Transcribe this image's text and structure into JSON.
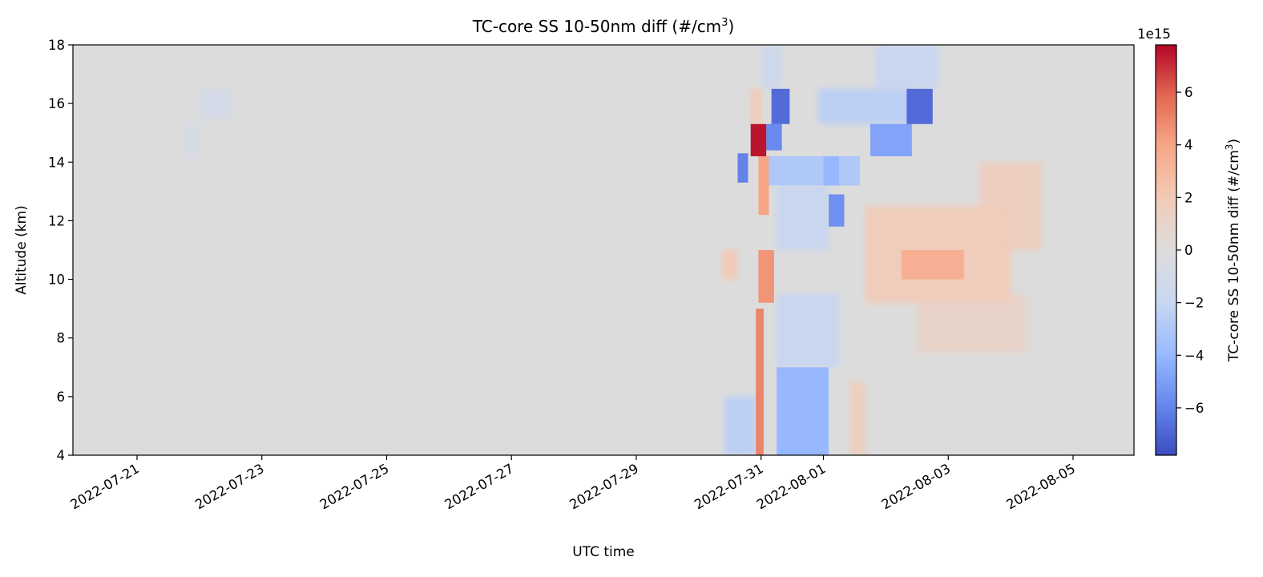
{
  "chart_data": {
    "type": "heatmap",
    "title": "TC-core SS 10-50nm diff (#/cm",
    "title_superscript": "3",
    "title_suffix": ")",
    "xlabel": "UTC time",
    "ylabel": "Altitude (km)",
    "x_ticks": [
      "2022-07-21",
      "2022-07-23",
      "2022-07-25",
      "2022-07-27",
      "2022-07-29",
      "2022-07-31",
      "2022-08-01",
      "2022-08-03",
      "2022-08-05"
    ],
    "x_range": [
      "2022-07-20",
      "2022-08-06"
    ],
    "y_ticks": [
      4,
      6,
      8,
      10,
      12,
      14,
      16,
      18
    ],
    "ylim": [
      4,
      18
    ],
    "colorbar": {
      "label": "TC-core SS 10-50nm diff (#/cm",
      "label_superscript": "3",
      "label_suffix": ")",
      "exponent_label": "1e15",
      "ticks": [
        -6,
        -4,
        -2,
        0,
        2,
        4,
        6
      ],
      "tick_labels": [
        "−6",
        "−4",
        "−2",
        "0",
        "2",
        "4",
        "6"
      ],
      "range": [
        -7.8,
        7.8
      ],
      "colormap": "coolwarm",
      "colors": [
        "#3b4cc0",
        "#6788ee",
        "#9abbff",
        "#c9d7f0",
        "#dddcdc",
        "#f2cbb7",
        "#f7a889",
        "#e26952",
        "#b40426"
      ]
    },
    "features": [
      {
        "t0": "2022-07-30 20:00",
        "t1": "2022-07-31 02:00",
        "alt0": 14.2,
        "alt1": 15.3,
        "value": 7.5
      },
      {
        "t0": "2022-07-31 04:00",
        "t1": "2022-07-31 11:00",
        "alt0": 15.3,
        "alt1": 16.5,
        "value": -6.8
      },
      {
        "t0": "2022-07-31 02:00",
        "t1": "2022-07-31 08:00",
        "alt0": 14.4,
        "alt1": 15.3,
        "value": -5.8
      },
      {
        "t0": "2022-08-02 08:00",
        "t1": "2022-08-02 18:00",
        "alt0": 15.3,
        "alt1": 16.5,
        "value": -6.8
      },
      {
        "t0": "2022-08-01 18:00",
        "t1": "2022-08-02 10:00",
        "alt0": 14.2,
        "alt1": 15.3,
        "value": -4.8
      },
      {
        "t0": "2022-07-30 15:00",
        "t1": "2022-07-30 19:00",
        "alt0": 13.3,
        "alt1": 14.3,
        "value": -6.0
      },
      {
        "t0": "2022-08-01 02:00",
        "t1": "2022-08-01 08:00",
        "alt0": 11.8,
        "alt1": 12.9,
        "value": -5.5
      },
      {
        "t0": "2022-08-01 00:00",
        "t1": "2022-08-01 06:00",
        "alt0": 13.2,
        "alt1": 14.2,
        "value": -4.0
      },
      {
        "t0": "2022-07-30 23:00",
        "t1": "2022-07-31 05:00",
        "alt0": 9.2,
        "alt1": 11.0,
        "value": 4.5
      },
      {
        "t0": "2022-07-30 23:00",
        "t1": "2022-07-31 03:00",
        "alt0": 12.2,
        "alt1": 14.2,
        "value": 4.0
      },
      {
        "t0": "2022-07-30 22:00",
        "t1": "2022-07-31 01:00",
        "alt0": 4.0,
        "alt1": 9.0,
        "value": 5.0
      },
      {
        "t0": "2022-07-31 06:00",
        "t1": "2022-08-01 02:00",
        "alt0": 4.0,
        "alt1": 7.0,
        "value": -4.0
      },
      {
        "t0": "2022-07-30 10:00",
        "t1": "2022-07-30 22:00",
        "alt0": 4.0,
        "alt1": 6.0,
        "value": -2.5
      },
      {
        "t0": "2022-08-02 06:00",
        "t1": "2022-08-03 06:00",
        "alt0": 10.0,
        "alt1": 11.0,
        "value": 3.5
      },
      {
        "t0": "2022-08-01 16:00",
        "t1": "2022-08-04 00:00",
        "alt0": 9.2,
        "alt1": 12.5,
        "value": 1.8
      },
      {
        "t0": "2022-08-02 12:00",
        "t1": "2022-08-04 06:00",
        "alt0": 7.5,
        "alt1": 9.5,
        "value": 1.0
      },
      {
        "t0": "2022-08-03 12:00",
        "t1": "2022-08-04 12:00",
        "alt0": 11.0,
        "alt1": 14.0,
        "value": 1.5
      },
      {
        "t0": "2022-07-30 09:00",
        "t1": "2022-07-30 15:00",
        "alt0": 10.0,
        "alt1": 11.0,
        "value": 2.0
      },
      {
        "t0": "2022-07-31 02:00",
        "t1": "2022-08-01 14:00",
        "alt0": 13.2,
        "alt1": 14.2,
        "value": -3.0
      },
      {
        "t0": "2022-07-31 22:00",
        "t1": "2022-08-02 10:00",
        "alt0": 15.3,
        "alt1": 16.5,
        "value": -2.5
      },
      {
        "t0": "2022-08-01 20:00",
        "t1": "2022-08-02 20:00",
        "alt0": 16.5,
        "alt1": 18.0,
        "value": -2.0
      },
      {
        "t0": "2022-07-31 00:00",
        "t1": "2022-07-31 08:00",
        "alt0": 16.5,
        "alt1": 18.0,
        "value": -1.5
      },
      {
        "t0": "2022-07-31 06:00",
        "t1": "2022-08-01 06:00",
        "alt0": 7.0,
        "alt1": 9.5,
        "value": -2.0
      },
      {
        "t0": "2022-07-31 06:00",
        "t1": "2022-08-01 02:00",
        "alt0": 11.0,
        "alt1": 13.2,
        "value": -2.0
      },
      {
        "t0": "2022-07-30 20:00",
        "t1": "2022-07-31 00:00",
        "alt0": 15.3,
        "alt1": 16.5,
        "value": 2.0
      },
      {
        "t0": "2022-08-01 10:00",
        "t1": "2022-08-01 16:00",
        "alt0": 4.0,
        "alt1": 6.5,
        "value": 1.5
      },
      {
        "t0": "2022-07-22 00:00",
        "t1": "2022-07-22 12:00",
        "alt0": 15.5,
        "alt1": 16.5,
        "value": -1.0
      },
      {
        "t0": "2022-07-21 18:00",
        "t1": "2022-07-22 00:00",
        "alt0": 14.2,
        "alt1": 15.3,
        "value": -0.8
      }
    ]
  }
}
